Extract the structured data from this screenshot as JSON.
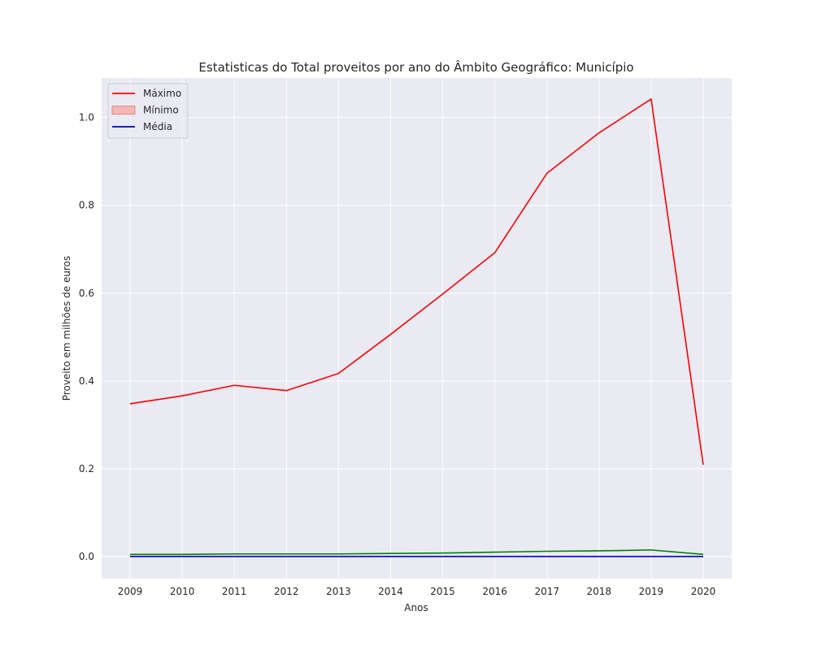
{
  "chart_data": {
    "type": "line",
    "title": "Estatisticas do Total proveitos por ano do Âmbito Geográfico: Município",
    "xlabel": "Anos",
    "ylabel": "Proveito em milhões de euros",
    "x": [
      "2009",
      "2010",
      "2011",
      "2012",
      "2013",
      "2014",
      "2015",
      "2016",
      "2017",
      "2018",
      "2019",
      "2020"
    ],
    "ylim": [
      -0.05,
      1.09
    ],
    "yticks": [
      "0.0",
      "0.2",
      "0.4",
      "0.6",
      "0.8",
      "1.0"
    ],
    "ytick_values": [
      0.0,
      0.2,
      0.4,
      0.6,
      0.8,
      1.0
    ],
    "grid": true,
    "background": "#eaeaf2",
    "legend_position": "upper-left",
    "series": [
      {
        "name": "Máximo",
        "kind": "line",
        "color": "#ff0000",
        "values": [
          0.348,
          0.366,
          0.39,
          0.378,
          0.417,
          0.506,
          0.598,
          0.692,
          0.873,
          0.965,
          1.042,
          0.209
        ]
      },
      {
        "name": "",
        "kind": "line",
        "color": "#008000",
        "values": [
          0.005,
          0.005,
          0.006,
          0.006,
          0.006,
          0.007,
          0.008,
          0.01,
          0.012,
          0.013,
          0.015,
          0.005
        ]
      },
      {
        "name": "Mínimo",
        "kind": "band",
        "color": "#f4b6b6",
        "values": [
          0.0,
          0.0,
          0.0,
          0.0,
          0.0,
          0.0,
          0.0,
          0.0,
          0.0,
          0.0,
          0.0,
          0.0
        ]
      },
      {
        "name": "Média",
        "kind": "line",
        "color": "#0000cc",
        "values": [
          0.0,
          0.0,
          0.0,
          0.0,
          0.0,
          0.0,
          0.0,
          0.0,
          0.0,
          0.0,
          0.0,
          0.0
        ]
      }
    ],
    "legend": [
      {
        "label": "Máximo",
        "swatch": "line",
        "color": "#ff0000"
      },
      {
        "label": "Mínimo",
        "swatch": "patch",
        "color": "#f4b6b6",
        "edge": "#e58a8a"
      },
      {
        "label": "Média",
        "swatch": "line",
        "color": "#0000cc"
      }
    ]
  }
}
